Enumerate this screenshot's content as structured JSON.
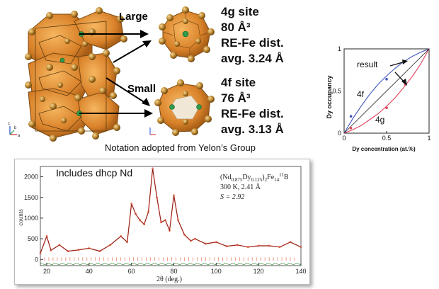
{
  "crystal": {
    "large_label": "Large",
    "small_label": "Small",
    "site_4g": {
      "name": "4g site",
      "volume": "80 Å³",
      "dist_label": "RE-Fe dist.",
      "avg": "avg. 3.24 Å"
    },
    "site_4f": {
      "name": "4f site",
      "volume": "76 Å³",
      "dist_label": "RE-Fe dist.",
      "avg": "avg. 3.13 Å"
    },
    "axes_letters": [
      "c",
      "a",
      "b"
    ],
    "notation": "Notation adopted from Yelon’s Group"
  },
  "occupancy_chart": {
    "title": "",
    "ylabel": "Dy occupancy",
    "xlabel": "Dy concentration (at.%)",
    "x_ticks": [
      "0",
      "0.5",
      "1"
    ],
    "y_ticks": [
      "0",
      "0.5",
      "1"
    ],
    "annotation_result": "result",
    "label_4f": "4f",
    "label_4g": "4g",
    "colors": {
      "curve_4f": "#3d55b8",
      "curve_4g": "#e0405a",
      "diagonal": "#222222",
      "marker_4f": "#3d55b8",
      "marker_4g": "#e0405a"
    }
  },
  "chart_data": [
    {
      "type": "line",
      "xlabel": "Dy concentration (at.%)",
      "ylabel": "Dy occupancy",
      "xlim": [
        0,
        1
      ],
      "ylim": [
        0,
        1
      ],
      "grid": false,
      "series": [
        {
          "name": "4f",
          "x": [
            0,
            0.1,
            0.2,
            0.3,
            0.4,
            0.5,
            0.6,
            0.7,
            0.8,
            0.9,
            1.0
          ],
          "y": [
            0,
            0.17,
            0.32,
            0.46,
            0.58,
            0.68,
            0.77,
            0.85,
            0.91,
            0.96,
            1.0
          ]
        },
        {
          "name": "4g",
          "x": [
            0,
            0.1,
            0.2,
            0.3,
            0.4,
            0.5,
            0.6,
            0.7,
            0.8,
            0.9,
            1.0
          ],
          "y": [
            0,
            0.04,
            0.09,
            0.16,
            0.23,
            0.32,
            0.42,
            0.54,
            0.67,
            0.82,
            1.0
          ]
        },
        {
          "x": [
            0,
            1
          ],
          "y": [
            0,
            1
          ]
        }
      ],
      "points": {
        "4f": [
          {
            "x": 0.08,
            "y": 0.2
          },
          {
            "x": 0.5,
            "y": 0.64
          }
        ],
        "4g": [
          {
            "x": 0.08,
            "y": 0.06
          },
          {
            "x": 0.5,
            "y": 0.3
          },
          {
            "x": 0.72,
            "y": 0.58
          }
        ]
      }
    },
    {
      "type": "line",
      "xlabel": "2θ (deg.)",
      "ylabel": "counts",
      "xlim": [
        17,
        140
      ],
      "ylim": [
        -150,
        2250
      ],
      "x_ticks": [
        "20",
        "40",
        "60",
        "80",
        "100",
        "120",
        "140"
      ],
      "y_ticks": [
        "0",
        "500",
        "1000",
        "1500",
        "2000"
      ],
      "series": [
        {
          "x": [
            17,
            20,
            22,
            26,
            30,
            35,
            40,
            45,
            50,
            55,
            58,
            60,
            62,
            64,
            66,
            68,
            70,
            72,
            74,
            76,
            78,
            80,
            82,
            85,
            88,
            90,
            95,
            100,
            105,
            110,
            115,
            120,
            125,
            130,
            135,
            140
          ],
          "y": [
            150,
            560,
            220,
            350,
            200,
            230,
            270,
            200,
            350,
            560,
            420,
            1350,
            1100,
            950,
            850,
            1150,
            2200,
            1500,
            900,
            950,
            700,
            1550,
            950,
            600,
            450,
            500,
            380,
            420,
            320,
            350,
            300,
            330,
            330,
            300,
            420,
            300
          ]
        }
      ]
    }
  ],
  "xrd": {
    "annotation": "Includes dhcp Nd",
    "formula_pre": "(Nd",
    "formula_sub1": "0.875",
    "formula_mid": "Dy",
    "formula_sub2": "0.125",
    "formula_mid2": ")",
    "formula_sub3": "2",
    "formula_mid3": "Fe",
    "formula_sub4": "14",
    "formula_sup5": "11",
    "formula_end": "B",
    "conditions": "300 K, 2.41 Å",
    "s_value": "S = 2.92",
    "ylabel": "counts",
    "xlabel": "2θ (deg.)",
    "x_ticks": [
      "20",
      "40",
      "60",
      "80",
      "100",
      "120",
      "140"
    ],
    "y_ticks": [
      "0",
      "500",
      "1000",
      "1500",
      "2000"
    ],
    "colors": {
      "observed": "#e85a3a",
      "calculated": "#6a1520",
      "ticks": "#e85a3a",
      "difference": "#2e7d32"
    }
  }
}
